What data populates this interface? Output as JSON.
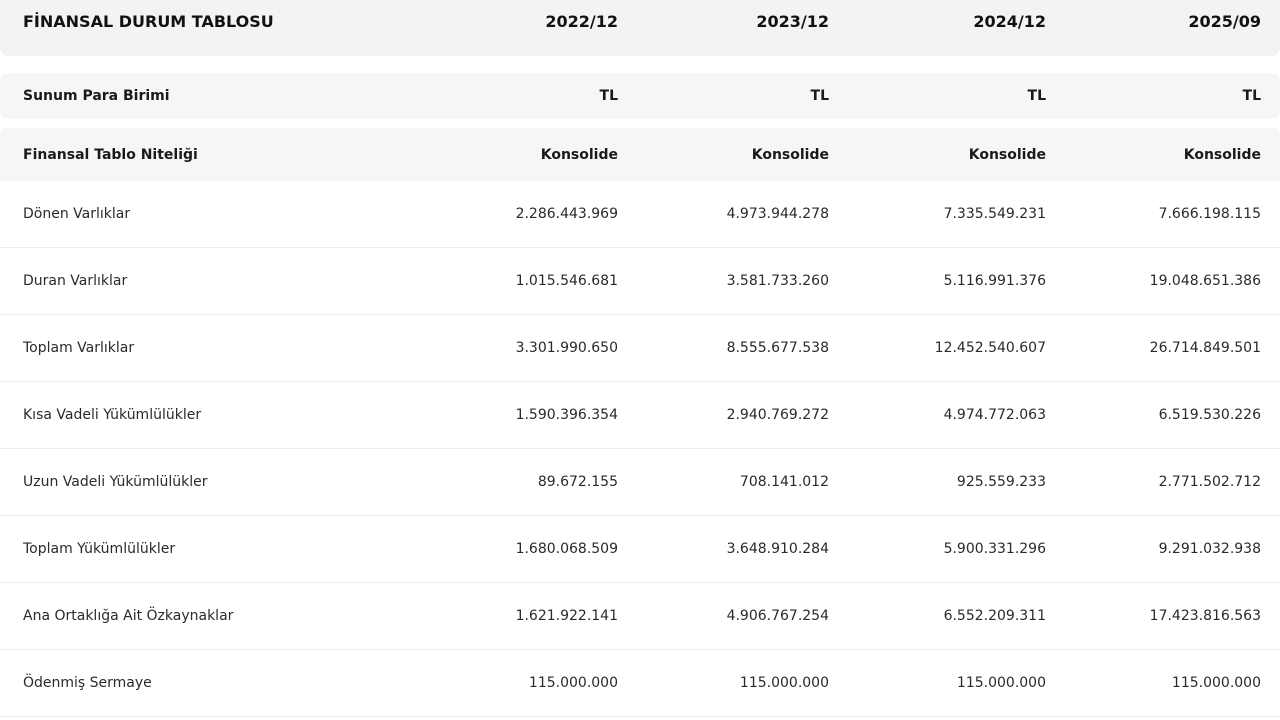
{
  "table": {
    "title": "FİNANSAL DURUM TABLOSU",
    "periods": [
      "2022/12",
      "2023/12",
      "2024/12",
      "2025/09"
    ],
    "currency_row": {
      "label": "Sunum Para Birimi",
      "values": [
        "TL",
        "TL",
        "TL",
        "TL"
      ]
    },
    "nature_row": {
      "label": "Finansal Tablo Niteliği",
      "values": [
        "Konsolide",
        "Konsolide",
        "Konsolide",
        "Konsolide"
      ]
    },
    "rows": [
      {
        "label": "Dönen Varlıklar",
        "values": [
          "2.286.443.969",
          "4.973.944.278",
          "7.335.549.231",
          "7.666.198.115"
        ]
      },
      {
        "label": "Duran Varlıklar",
        "values": [
          "1.015.546.681",
          "3.581.733.260",
          "5.116.991.376",
          "19.048.651.386"
        ]
      },
      {
        "label": "Toplam Varlıklar",
        "values": [
          "3.301.990.650",
          "8.555.677.538",
          "12.452.540.607",
          "26.714.849.501"
        ]
      },
      {
        "label": "Kısa Vadeli Yükümlülükler",
        "values": [
          "1.590.396.354",
          "2.940.769.272",
          "4.974.772.063",
          "6.519.530.226"
        ]
      },
      {
        "label": "Uzun Vadeli Yükümlülükler",
        "values": [
          "89.672.155",
          "708.141.012",
          "925.559.233",
          "2.771.502.712"
        ]
      },
      {
        "label": "Toplam Yükümlülükler",
        "values": [
          "1.680.068.509",
          "3.648.910.284",
          "5.900.331.296",
          "9.291.032.938"
        ]
      },
      {
        "label": "Ana Ortaklığa Ait Özkaynaklar",
        "values": [
          "1.621.922.141",
          "4.906.767.254",
          "6.552.209.311",
          "17.423.816.563"
        ]
      },
      {
        "label": "Ödenmiş Sermaye",
        "values": [
          "115.000.000",
          "115.000.000",
          "115.000.000",
          "115.000.000"
        ]
      }
    ]
  }
}
